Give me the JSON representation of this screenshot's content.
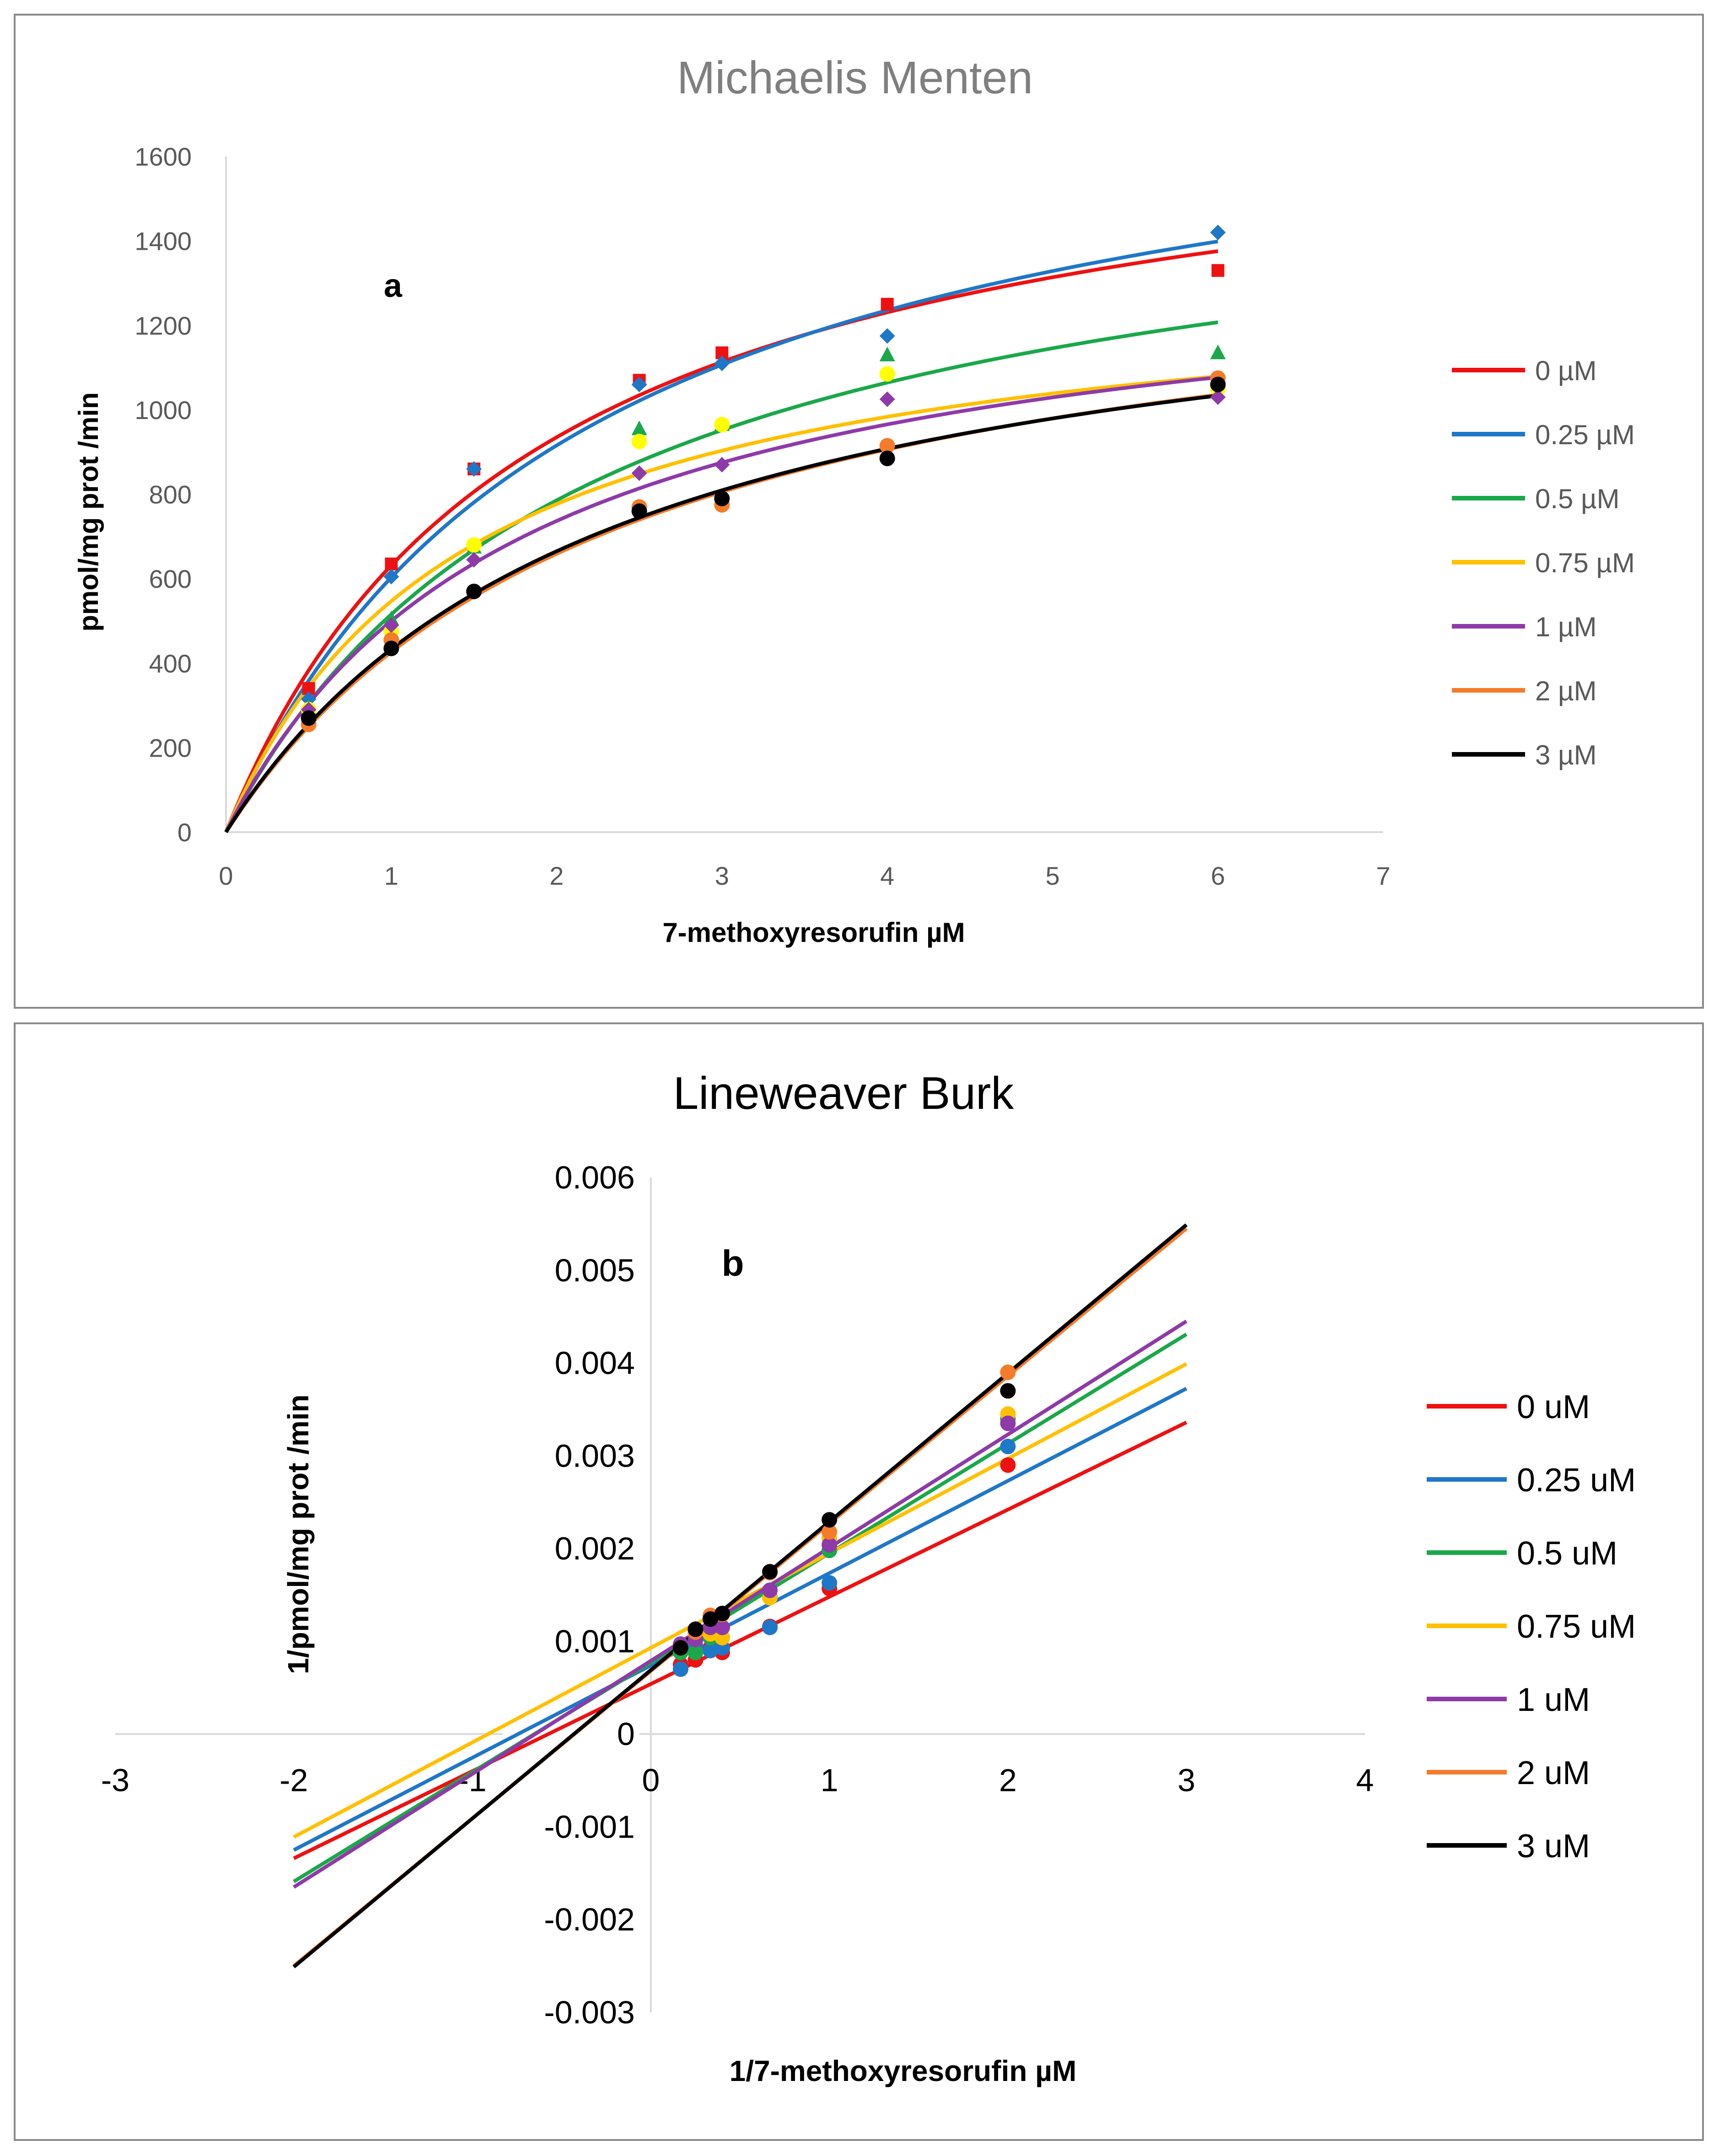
{
  "chart_data": [
    {
      "type": "scatter",
      "fit": "michaelis-menten",
      "title": "Michaelis Menten",
      "panel_label": "a",
      "xlabel": "7-methoxyresorufin  µM",
      "ylabel": "pmol/mg prot /min",
      "xlim": [
        0,
        7
      ],
      "ylim": [
        0,
        1600
      ],
      "xticks": [
        0,
        1,
        2,
        3,
        4,
        5,
        6,
        7
      ],
      "yticks": [
        0,
        200,
        400,
        600,
        800,
        1000,
        1200,
        1400,
        1600
      ],
      "grid": false,
      "legend_position": "right",
      "x": [
        0.5,
        1,
        1.5,
        2.5,
        3,
        4,
        6
      ],
      "series": [
        {
          "name": "0 µM",
          "color": "#ee1111",
          "marker": "square",
          "values": [
            340,
            635,
            860,
            1070,
            1135,
            1250,
            1330
          ],
          "vmax": 1800,
          "km": 1.85
        },
        {
          "name": "0.25 µM",
          "color": "#1f77c8",
          "marker": "diamond",
          "values": [
            315,
            605,
            860,
            1060,
            1110,
            1175,
            1420
          ],
          "vmax": 1900,
          "km": 2.15
        },
        {
          "name": "0.5 µM",
          "color": "#1aa84a",
          "marker": "triangle",
          "values": [
            295,
            505,
            675,
            955,
            965,
            1130,
            1135
          ],
          "vmax": 1650,
          "km": 2.2
        },
        {
          "name": "0.75 µM",
          "color": "#ffc000",
          "marker": "circle-yellow",
          "values": [
            290,
            475,
            680,
            925,
            965,
            1085,
            1050
          ],
          "vmax": 1340,
          "km": 1.45
        },
        {
          "name": "1 µM",
          "color": "#8e3aa8",
          "marker": "diamond",
          "values": [
            290,
            490,
            645,
            850,
            870,
            1025,
            1030
          ],
          "vmax": 1400,
          "km": 1.8
        },
        {
          "name": "2 µM",
          "color": "#f47b2a",
          "marker": "circle",
          "values": [
            255,
            455,
            570,
            770,
            775,
            915,
            1075
          ],
          "vmax": 1450,
          "km": 2.4
        },
        {
          "name": "3 µM",
          "color": "#000000",
          "marker": "circle",
          "values": [
            270,
            435,
            570,
            760,
            790,
            885,
            1060
          ],
          "vmax": 1430,
          "km": 2.3
        }
      ]
    },
    {
      "type": "scatter",
      "fit": "linear",
      "title": "Lineweaver Burk",
      "panel_label": "b",
      "xlabel": "1/7-methoxyresorufin µM",
      "ylabel": "1/pmol/mg prot /min",
      "xlim": [
        -3,
        4
      ],
      "ylim": [
        -0.003,
        0.006
      ],
      "xticks": [
        -3,
        -2,
        -1,
        0,
        1,
        2,
        3,
        4
      ],
      "yticks": [
        -0.003,
        -0.002,
        -0.001,
        0,
        0.001,
        0.002,
        0.003,
        0.004,
        0.005,
        0.006
      ],
      "xtick_labels": [
        "-3",
        "-2",
        "-1",
        "0",
        "1",
        "2",
        "3",
        "4"
      ],
      "ytick_labels": [
        "-0.003",
        "-0.002",
        "-0.001",
        "0",
        "0.001",
        "0.002",
        "0.003",
        "0.004",
        "0.005",
        "0.006"
      ],
      "grid": false,
      "legend_position": "right",
      "x": [
        0.1667,
        0.25,
        0.3333,
        0.4,
        0.6667,
        1,
        2
      ],
      "fit_range": [
        -2,
        3
      ],
      "series": [
        {
          "name": "0 uM",
          "color": "#ee1111",
          "values": [
            0.00075,
            0.0008,
            0.00093,
            0.00088,
            0.00116,
            0.00157,
            0.0029
          ],
          "slope": 0.00094,
          "intercept": 0.00054
        },
        {
          "name": "0.25 uM",
          "color": "#1f77c8",
          "values": [
            0.0007,
            0.00095,
            0.0009,
            0.00093,
            0.00115,
            0.00163,
            0.0031
          ],
          "slope": 0.000995,
          "intercept": 0.00074
        },
        {
          "name": "0.5 uM",
          "color": "#1aa84a",
          "values": [
            0.00088,
            0.00088,
            0.00104,
            0.00104,
            0.00148,
            0.00198,
            0.0034
          ],
          "slope": 0.00118,
          "intercept": 0.00077
        },
        {
          "name": "0.75 uM",
          "color": "#ffc000",
          "values": [
            0.00095,
            0.00108,
            0.00108,
            0.00104,
            0.00147,
            0.00211,
            0.00345
          ],
          "slope": 0.00102,
          "intercept": 0.00093
        },
        {
          "name": "1 uM",
          "color": "#8e3aa8",
          "values": [
            0.00097,
            0.00102,
            0.00115,
            0.00115,
            0.00155,
            0.00204,
            0.00335
          ],
          "slope": 0.00122,
          "intercept": 0.00079
        },
        {
          "name": "2 uM",
          "color": "#f47b2a",
          "values": [
            0.00093,
            0.0011,
            0.00128,
            0.00129,
            0.00174,
            0.00218,
            0.0039
          ],
          "slope": 0.00159,
          "intercept": 0.00068
        },
        {
          "name": "3 uM",
          "color": "#000000",
          "values": [
            0.00093,
            0.00113,
            0.00124,
            0.0013,
            0.00175,
            0.00231,
            0.0037
          ],
          "slope": 0.0016,
          "intercept": 0.00069
        }
      ]
    }
  ]
}
